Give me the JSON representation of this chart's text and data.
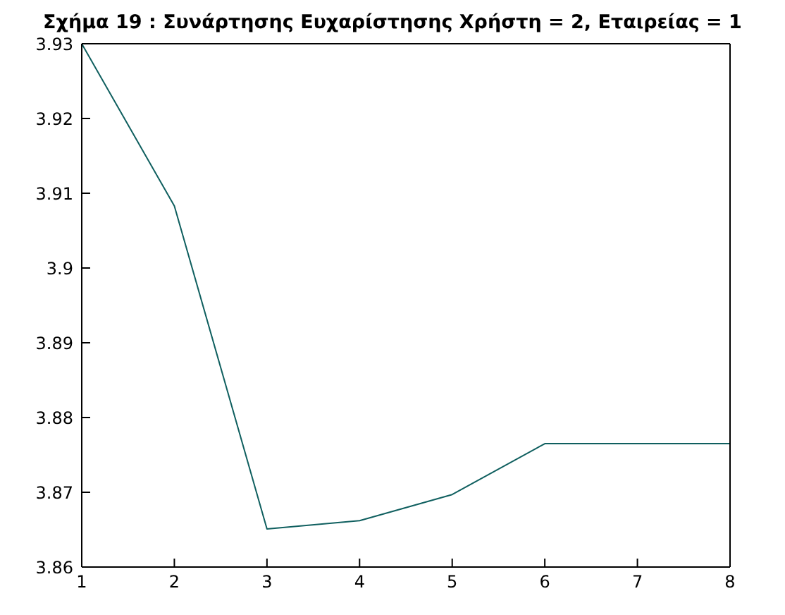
{
  "chart_data": {
    "type": "line",
    "title": "Σχήμα 19 : Συνάρτησης Ευχαρίστησης Χρήστη = 2, Εταιρείας = 1",
    "x": [
      1,
      2,
      3,
      4,
      5,
      6,
      7,
      8
    ],
    "series": [
      {
        "color": "#0f5f5f",
        "values": [
          3.93,
          3.9083,
          3.8651,
          3.8662,
          3.8697,
          3.8765,
          3.8765,
          3.8765
        ]
      }
    ],
    "xlim": [
      1,
      8
    ],
    "xticks": [
      1,
      2,
      3,
      4,
      5,
      6,
      7,
      8
    ],
    "ylim": [
      3.86,
      3.93
    ],
    "yticks": [
      3.86,
      3.87,
      3.88,
      3.89,
      3.9,
      3.91,
      3.92,
      3.93
    ],
    "grid": false,
    "legend": false,
    "marker": "none",
    "line_style": "solid"
  }
}
